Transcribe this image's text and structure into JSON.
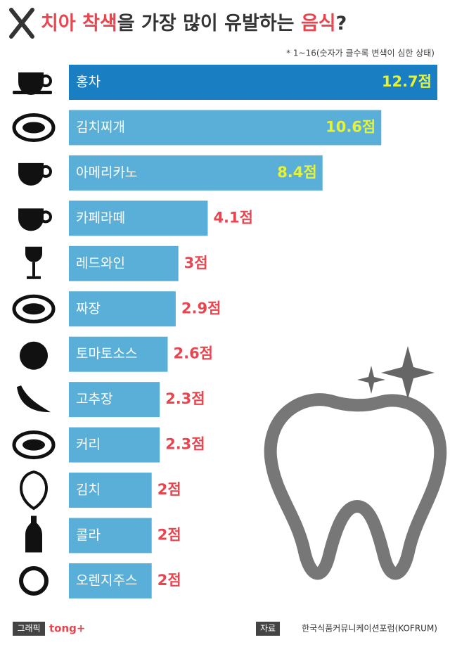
{
  "chart_data": {
    "type": "barh",
    "title_parts": [
      "치아 착색",
      "을 가장 많이 유발하는 ",
      "음식",
      "?"
    ],
    "note": "* 1~16(숫자가 클수록 변색이 심한 상태)",
    "categories": [
      "홍차",
      "김치찌개",
      "아메리카노",
      "카페라떼",
      "레드와인",
      "짜장",
      "토마토소스",
      "고추장",
      "커리",
      "김치",
      "콜라",
      "오렌지주스"
    ],
    "values": [
      12.7,
      10.6,
      8.4,
      4.1,
      3,
      2.9,
      2.6,
      2.3,
      2.3,
      2,
      2,
      2
    ],
    "value_labels": [
      "12.7점",
      "10.6점",
      "8.4점",
      "4.1점",
      "3점",
      "2.9점",
      "2.6점",
      "2.3점",
      "2.3점",
      "2점",
      "2점",
      "2점"
    ],
    "colors": [
      "#1a7ec2",
      "#5aafd8",
      "#5aafd8",
      "#5aafd8",
      "#5aafd8",
      "#5aafd8",
      "#5aafd8",
      "#5aafd8",
      "#5aafd8",
      "#5aafd8",
      "#5aafd8",
      "#5aafd8"
    ],
    "xlim": [
      -1.1,
      12.7
    ]
  },
  "footer": {
    "graphic_label": "그래픽",
    "brand": "tong+",
    "source_label": "자료",
    "source": "한국식품커뮤니케이션포럼(KOFRUM)"
  }
}
